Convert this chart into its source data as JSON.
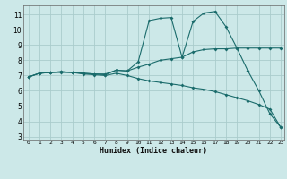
{
  "xlabel": "Humidex (Indice chaleur)",
  "bg_color": "#cce8e8",
  "grid_color": "#b0d0d0",
  "line_color": "#1a6b6b",
  "xlim": [
    -0.5,
    23.3
  ],
  "ylim": [
    2.8,
    11.6
  ],
  "xticks": [
    0,
    1,
    2,
    3,
    4,
    5,
    6,
    7,
    8,
    9,
    10,
    11,
    12,
    13,
    14,
    15,
    16,
    17,
    18,
    19,
    20,
    21,
    22,
    23
  ],
  "yticks": [
    3,
    4,
    5,
    6,
    7,
    8,
    9,
    10,
    11
  ],
  "line1_x": [
    0,
    1,
    2,
    3,
    4,
    5,
    6,
    7,
    8,
    9,
    10,
    11,
    12,
    13,
    14,
    15,
    16,
    17,
    18,
    19,
    20,
    21,
    22,
    23
  ],
  "line1_y": [
    6.9,
    7.15,
    7.2,
    7.25,
    7.2,
    7.15,
    7.1,
    7.05,
    7.35,
    7.3,
    7.9,
    10.6,
    10.75,
    10.8,
    8.2,
    10.55,
    11.1,
    11.2,
    10.2,
    8.8,
    7.3,
    6.0,
    4.5,
    3.6
  ],
  "line2_x": [
    0,
    1,
    2,
    3,
    4,
    5,
    6,
    7,
    8,
    9,
    10,
    11,
    12,
    13,
    14,
    15,
    16,
    17,
    18,
    19,
    20,
    21,
    22,
    23
  ],
  "line2_y": [
    6.9,
    7.15,
    7.2,
    7.25,
    7.2,
    7.15,
    7.1,
    7.1,
    7.35,
    7.3,
    7.55,
    7.75,
    8.0,
    8.1,
    8.2,
    8.55,
    8.7,
    8.75,
    8.75,
    8.8,
    8.8,
    8.8,
    8.8,
    8.8
  ],
  "line3_x": [
    0,
    1,
    2,
    3,
    4,
    5,
    6,
    7,
    8,
    9,
    10,
    11,
    12,
    13,
    14,
    15,
    16,
    17,
    18,
    19,
    20,
    21,
    22,
    23
  ],
  "line3_y": [
    6.9,
    7.15,
    7.2,
    7.2,
    7.2,
    7.1,
    7.05,
    7.0,
    7.15,
    7.0,
    6.8,
    6.65,
    6.55,
    6.45,
    6.35,
    6.2,
    6.1,
    5.95,
    5.75,
    5.55,
    5.35,
    5.1,
    4.8,
    3.6
  ]
}
